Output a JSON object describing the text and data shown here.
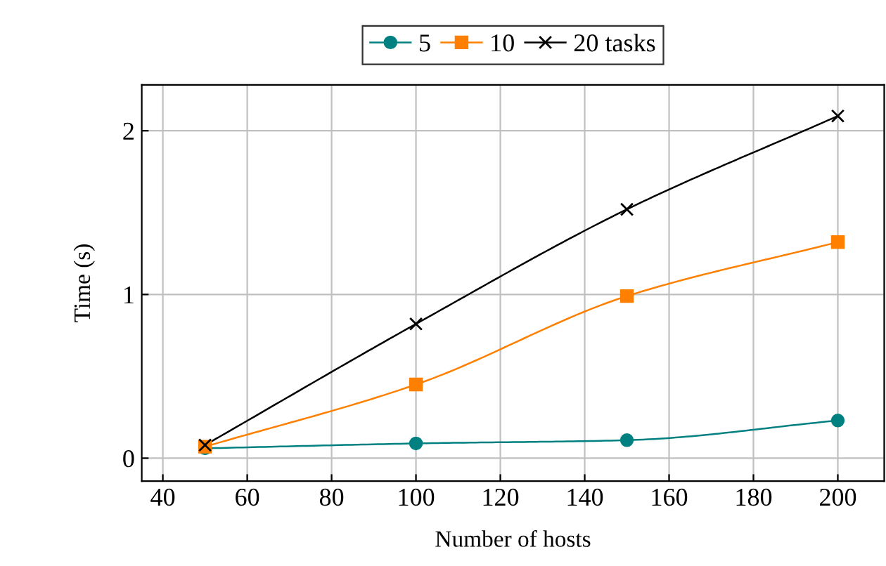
{
  "chart_data": {
    "type": "line",
    "xlabel": "Number of hosts",
    "ylabel": "Time (s)",
    "x": [
      50,
      100,
      150,
      200
    ],
    "series": [
      {
        "name": "5",
        "color": "#008080",
        "marker": "circle",
        "values": [
          0.06,
          0.09,
          0.11,
          0.23
        ]
      },
      {
        "name": "10",
        "color": "#ff8000",
        "marker": "square",
        "values": [
          0.07,
          0.45,
          0.99,
          1.32
        ]
      },
      {
        "name": "20 tasks",
        "color": "#000000",
        "marker": "cross",
        "values": [
          0.08,
          0.82,
          1.52,
          2.09
        ]
      }
    ],
    "xlim": [
      35,
      211
    ],
    "ylim": [
      -0.14,
      2.28
    ],
    "xticks": [
      40,
      60,
      80,
      100,
      120,
      140,
      160,
      180,
      200
    ],
    "yticks": [
      0,
      1,
      2
    ],
    "grid": true,
    "legend": "top",
    "line_style": "solid"
  }
}
